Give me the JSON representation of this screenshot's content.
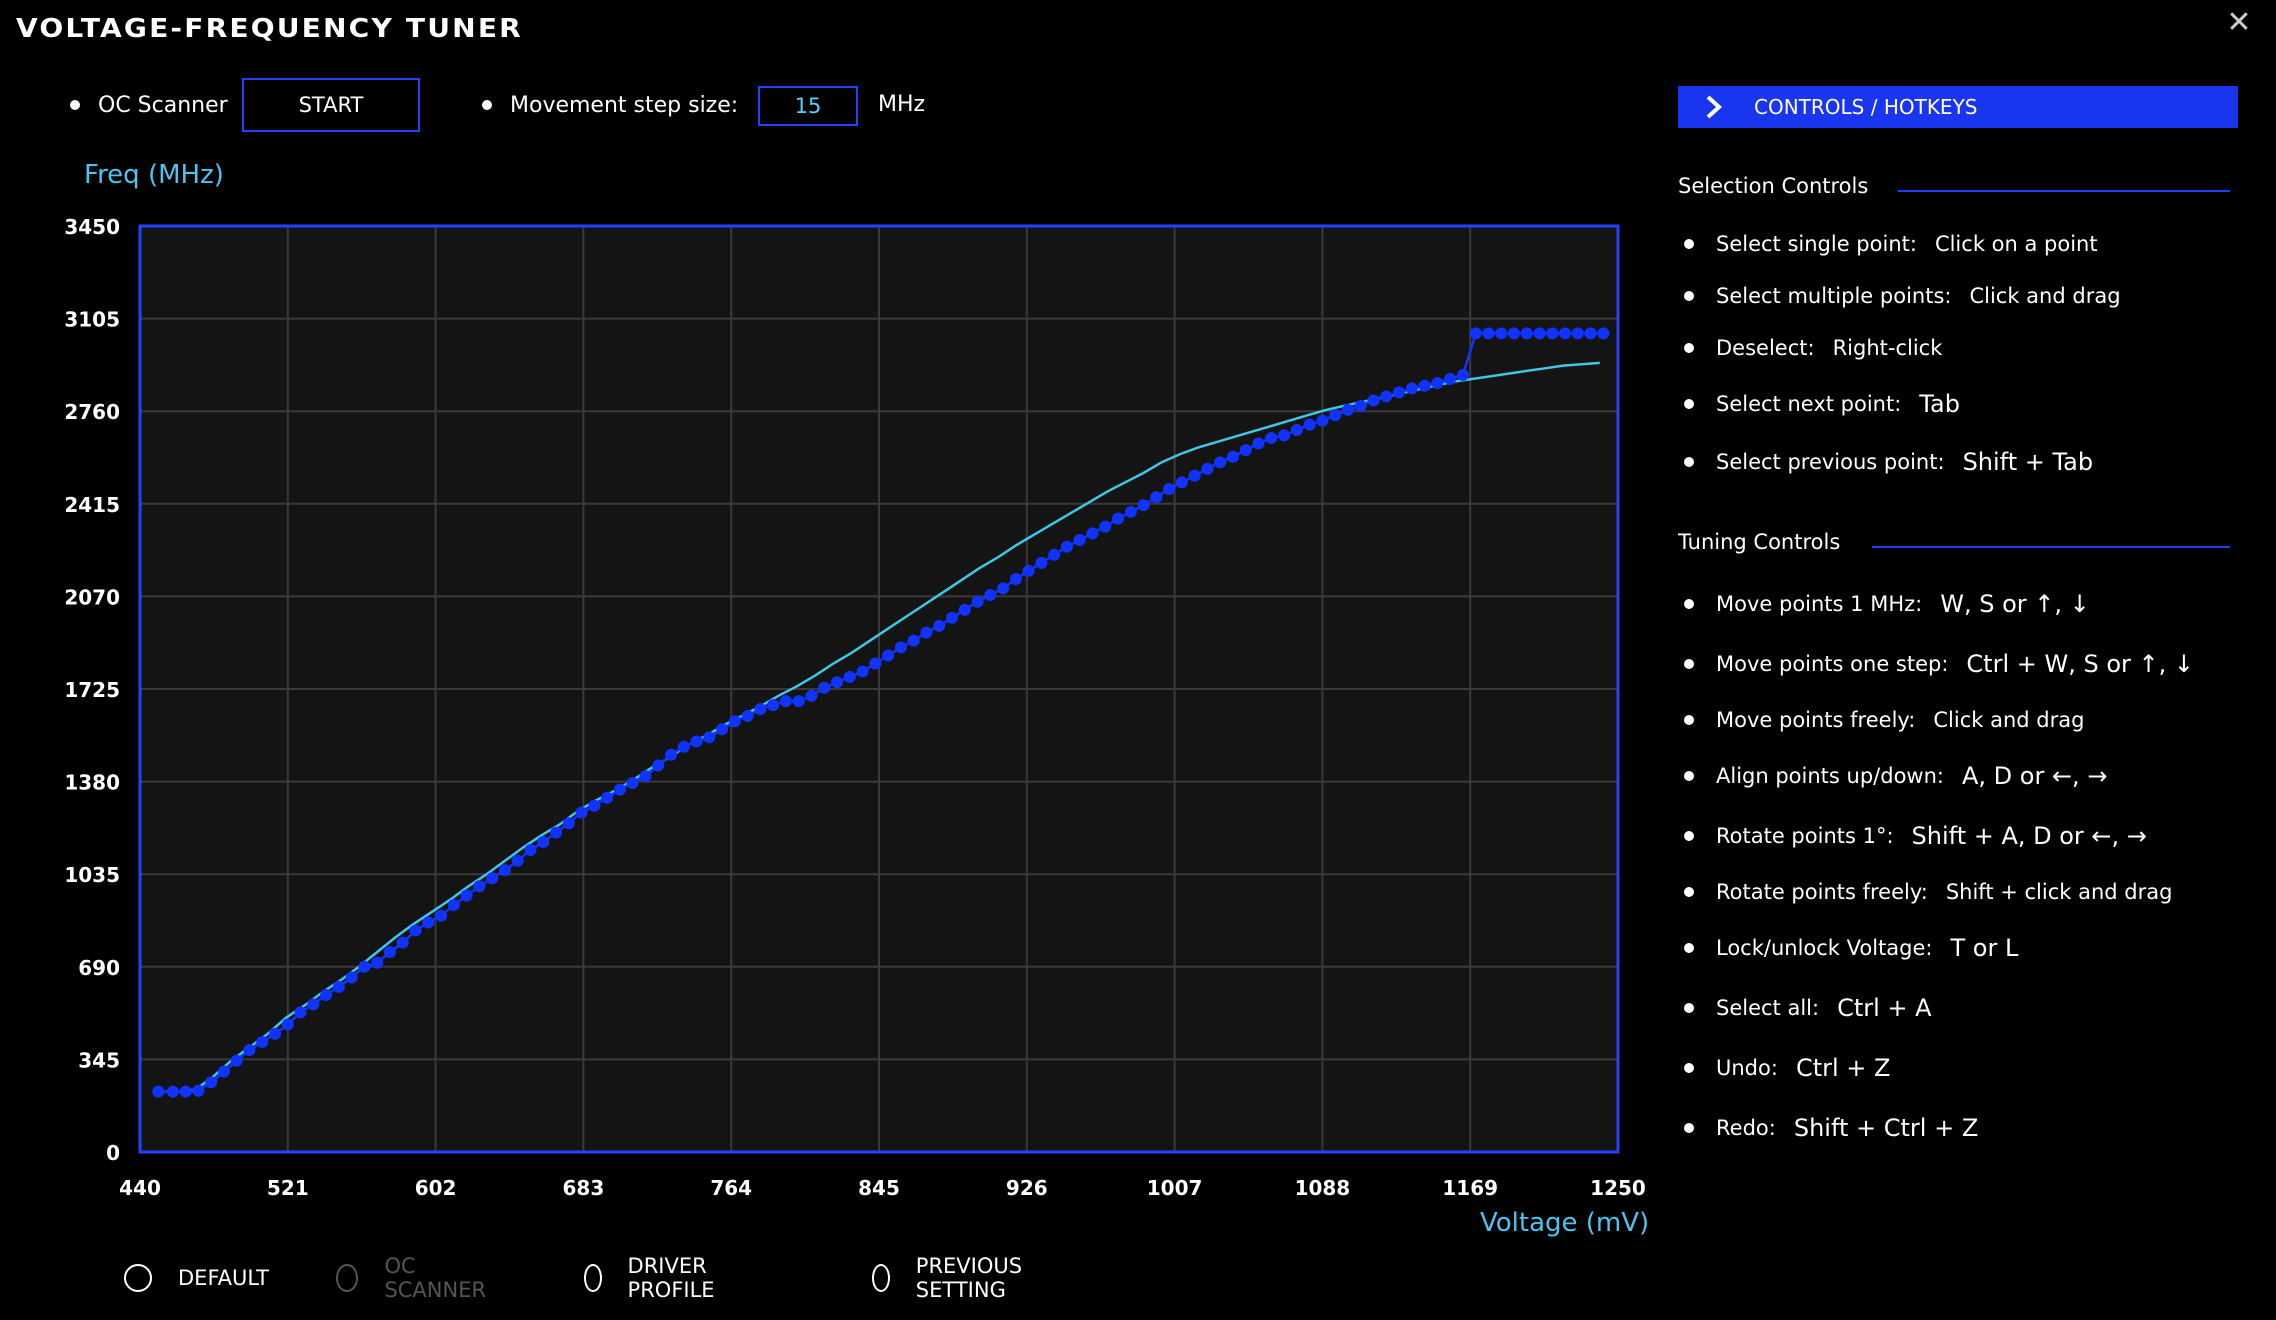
{
  "window": {
    "title": "VOLTAGE-FREQUENCY TUNER",
    "close_icon": "close-icon"
  },
  "toolbar": {
    "oc_scanner_label": "OC Scanner",
    "start_label": "START",
    "step_label": "Movement step size:",
    "step_value": "15",
    "step_unit": "MHz"
  },
  "chart_data": {
    "type": "line",
    "ylabel": "Freq (MHz)",
    "xlabel": "Voltage (mV)",
    "xlim": [
      440,
      1250
    ],
    "ylim": [
      0,
      3450
    ],
    "xticks": [
      "440",
      "521",
      "602",
      "683",
      "764",
      "845",
      "926",
      "1007",
      "1088",
      "1169",
      "1250"
    ],
    "yticks": [
      "0",
      "345",
      "690",
      "1035",
      "1380",
      "1725",
      "2070",
      "2415",
      "2760",
      "3105",
      "3450"
    ],
    "grid": true,
    "series": [
      {
        "role": "adjusted-curve-points",
        "color": "#1133ff",
        "x": [
          450,
          458,
          465,
          472,
          479,
          486,
          493,
          500,
          507,
          514,
          521,
          528,
          535,
          542,
          549,
          556,
          563,
          570,
          577,
          584,
          591,
          598,
          605,
          612,
          619,
          626,
          633,
          640,
          647,
          654,
          661,
          668,
          675,
          682,
          689,
          696,
          703,
          710,
          717,
          724,
          731,
          738,
          745,
          752,
          759,
          766,
          773,
          780,
          787,
          794,
          801,
          808,
          815,
          822,
          829,
          836,
          843,
          850,
          857,
          864,
          871,
          878,
          885,
          892,
          899,
          906,
          913,
          920,
          927,
          934,
          941,
          948,
          955,
          962,
          969,
          976,
          983,
          990,
          997,
          1004,
          1011,
          1018,
          1025,
          1032,
          1039,
          1046,
          1053,
          1060,
          1067,
          1074,
          1081,
          1088,
          1095,
          1102,
          1109,
          1116,
          1123,
          1130,
          1137,
          1144,
          1151,
          1158,
          1165,
          1172,
          1179,
          1186,
          1193,
          1200,
          1207,
          1214,
          1221,
          1228,
          1235,
          1242
        ],
        "y": [
          225,
          225,
          225,
          228,
          260,
          300,
          340,
          380,
          410,
          440,
          475,
          520,
          550,
          585,
          615,
          650,
          690,
          705,
          745,
          780,
          825,
          855,
          880,
          920,
          955,
          990,
          1020,
          1050,
          1085,
          1125,
          1155,
          1190,
          1225,
          1265,
          1290,
          1320,
          1350,
          1375,
          1400,
          1440,
          1480,
          1510,
          1530,
          1545,
          1575,
          1605,
          1625,
          1650,
          1665,
          1680,
          1680,
          1700,
          1730,
          1750,
          1770,
          1790,
          1820,
          1850,
          1880,
          1905,
          1935,
          1960,
          1990,
          2020,
          2050,
          2075,
          2100,
          2135,
          2165,
          2195,
          2225,
          2255,
          2280,
          2305,
          2330,
          2360,
          2385,
          2410,
          2440,
          2470,
          2495,
          2520,
          2545,
          2570,
          2590,
          2615,
          2640,
          2660,
          2670,
          2690,
          2710,
          2725,
          2745,
          2765,
          2780,
          2800,
          2815,
          2830,
          2845,
          2855,
          2865,
          2880,
          2895,
          3050,
          3050,
          3050,
          3050,
          3050,
          3050,
          3050,
          3050,
          3050,
          3050,
          3050
        ]
      },
      {
        "role": "default-curve",
        "color": "#3fc7e6",
        "x": [
          450,
          460,
          470,
          480,
          490,
          500,
          510,
          520,
          530,
          540,
          550,
          560,
          570,
          580,
          590,
          600,
          610,
          620,
          630,
          640,
          650,
          660,
          670,
          680,
          690,
          700,
          710,
          720,
          730,
          740,
          750,
          760,
          770,
          780,
          790,
          800,
          810,
          820,
          830,
          840,
          850,
          860,
          870,
          880,
          890,
          900,
          910,
          920,
          930,
          940,
          950,
          960,
          970,
          980,
          990,
          1000,
          1010,
          1020,
          1030,
          1040,
          1050,
          1060,
          1070,
          1080,
          1090,
          1100,
          1110,
          1120,
          1130,
          1140,
          1150,
          1160,
          1170,
          1180,
          1190,
          1200,
          1210,
          1220,
          1230,
          1240
        ],
        "y": [
          225,
          225,
          230,
          280,
          340,
          390,
          440,
          500,
          545,
          595,
          640,
          690,
          745,
          800,
          850,
          895,
          940,
          990,
          1035,
          1085,
          1135,
          1180,
          1220,
          1270,
          1310,
          1345,
          1385,
          1430,
          1470,
          1515,
          1550,
          1590,
          1625,
          1660,
          1700,
          1735,
          1775,
          1820,
          1860,
          1905,
          1950,
          1995,
          2040,
          2085,
          2130,
          2175,
          2215,
          2260,
          2300,
          2340,
          2380,
          2420,
          2460,
          2495,
          2530,
          2570,
          2600,
          2625,
          2645,
          2665,
          2685,
          2705,
          2725,
          2745,
          2765,
          2780,
          2795,
          2810,
          2825,
          2840,
          2855,
          2870,
          2880,
          2890,
          2900,
          2910,
          2920,
          2930,
          2935,
          2940
        ]
      }
    ]
  },
  "bottom_radios": [
    {
      "label": "DEFAULT",
      "enabled": true
    },
    {
      "label": "OC SCANNER",
      "enabled": false
    },
    {
      "label": "DRIVER PROFILE",
      "enabled": true
    },
    {
      "label": "PREVIOUS SETTING",
      "enabled": true
    }
  ],
  "side_panel": {
    "controls_button": "CONTROLS / HOTKEYS",
    "selection_title": "Selection Controls",
    "selection_items": [
      {
        "name": "Select single point:",
        "key": "Click on a point"
      },
      {
        "name": "Select multiple points:",
        "key": "Click and drag"
      },
      {
        "name": "Deselect:",
        "key": "Right-click"
      },
      {
        "name": "Select next point:",
        "key": "Tab"
      },
      {
        "name": "Select previous point:",
        "key": "Shift + Tab"
      }
    ],
    "tuning_title": "Tuning Controls",
    "tuning_items": [
      {
        "name": "Move points 1 MHz:",
        "key": "W, S or ↑, ↓"
      },
      {
        "name": "Move points one step:",
        "key": "Ctrl + W, S or ↑, ↓"
      },
      {
        "name": "Move points freely:",
        "key": "Click and drag"
      },
      {
        "name": "Align points up/down:",
        "key": "A, D or ←, →"
      },
      {
        "name": "Rotate points 1°:",
        "key": "Shift + A, D or ←, →"
      },
      {
        "name": "Rotate points freely:",
        "key": "Shift + click and drag"
      },
      {
        "name": "Lock/unlock Voltage:",
        "key": "T or L"
      },
      {
        "name": "Select all:",
        "key": "Ctrl + A"
      },
      {
        "name": "Undo:",
        "key": "Ctrl + Z"
      },
      {
        "name": "Redo:",
        "key": "Shift + Ctrl + Z"
      }
    ]
  }
}
